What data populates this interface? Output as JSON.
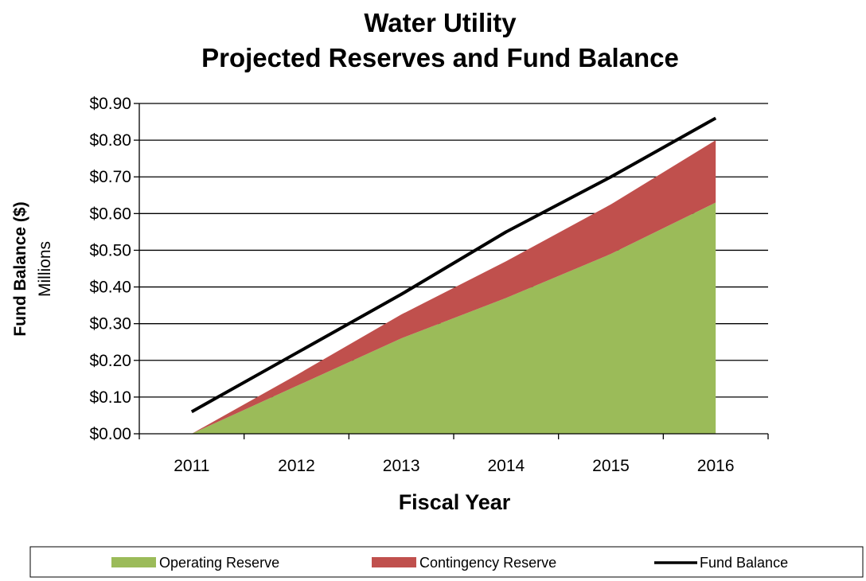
{
  "chart_data": {
    "type": "area",
    "title": "Water Utility",
    "subtitle": "Projected Reserves and Fund Balance",
    "xlabel": "Fiscal Year",
    "ylabel": "Fund Balance ($)",
    "yunit": "Millions",
    "categories": [
      "2011",
      "2012",
      "2013",
      "2014",
      "2015",
      "2016"
    ],
    "yticks": [
      "$0.00",
      "$0.10",
      "$0.20",
      "$0.30",
      "$0.40",
      "$0.50",
      "$0.60",
      "$0.70",
      "$0.80",
      "$0.90"
    ],
    "ylim": [
      0,
      0.9
    ],
    "grid": true,
    "legend_position": "bottom",
    "series": [
      {
        "name": "Operating Reserve",
        "kind": "area",
        "stacked": true,
        "color": "#9BBB59",
        "values": [
          0.0,
          0.13,
          0.26,
          0.37,
          0.49,
          0.63
        ]
      },
      {
        "name": "Contingency Reserve",
        "kind": "area",
        "stacked": true,
        "color": "#C0504D",
        "values": [
          0.0,
          0.03,
          0.065,
          0.1,
          0.135,
          0.17
        ]
      },
      {
        "name": "Fund Balance",
        "kind": "line",
        "color": "#000000",
        "values": [
          0.06,
          0.22,
          0.38,
          0.55,
          0.7,
          0.86
        ]
      }
    ]
  }
}
